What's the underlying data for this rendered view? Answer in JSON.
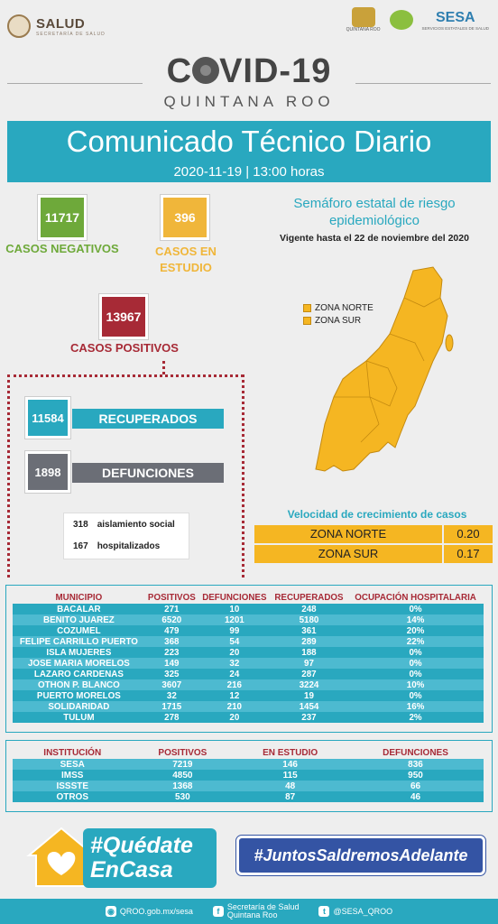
{
  "header": {
    "salud_name": "SALUD",
    "salud_sub": "SECRETARÍA DE SALUD",
    "qroo_logo_text": "QUINTANA ROO",
    "sesa_name": "SESA",
    "sesa_sub": "SERVICIOS ESTATALES DE SALUD"
  },
  "title": {
    "covid_left": "C",
    "covid_right": "VID-19",
    "region": "QUINTANA ROO",
    "banner": "Comunicado Técnico Diario",
    "date": "2020-11-19 | 13:00 horas"
  },
  "stats": {
    "negativos": {
      "value": "11717",
      "label": "CASOS NEGATIVOS",
      "color": "#6ea93a"
    },
    "estudio": {
      "value": "396",
      "label_1": "CASOS EN",
      "label_2": "ESTUDIO",
      "color": "#f0b63a"
    },
    "positivos": {
      "value": "13967",
      "label": "CASOS POSITIVOS",
      "color": "#a72a36"
    },
    "recuperados": {
      "value": "11584",
      "label": "RECUPERADOS"
    },
    "defunciones": {
      "value": "1898",
      "label": "DEFUNCIONES"
    },
    "aislamiento": {
      "value": "318",
      "label": "aislamiento social"
    },
    "hospitalizados": {
      "value": "167",
      "label": "hospitalizados"
    }
  },
  "semaforo": {
    "title_1": "Semáforo estatal de riesgo",
    "title_2": "epidemiológico",
    "vigente": "Vigente hasta el 22 de noviembre del 2020",
    "legend": [
      "ZONA NORTE",
      "ZONA SUR"
    ],
    "color": "#f5b622"
  },
  "velocidad": {
    "title": "Velocidad de crecimiento de casos",
    "rows": [
      {
        "zone": "ZONA NORTE",
        "value": "0.20"
      },
      {
        "zone": "ZONA SUR",
        "value": "0.17"
      }
    ]
  },
  "municipios": {
    "headers": [
      "MUNICIPIO",
      "POSITIVOS",
      "DEFUNCIONES",
      "RECUPERADOS",
      "OCUPACIÓN HOSPITALARIA"
    ],
    "rows": [
      [
        "BACALAR",
        "271",
        "10",
        "248",
        "0%"
      ],
      [
        "BENITO JUAREZ",
        "6520",
        "1201",
        "5180",
        "14%"
      ],
      [
        "COZUMEL",
        "479",
        "99",
        "361",
        "20%"
      ],
      [
        "FELIPE CARRILLO PUERTO",
        "368",
        "54",
        "289",
        "22%"
      ],
      [
        "ISLA MUJERES",
        "223",
        "20",
        "188",
        "0%"
      ],
      [
        "JOSE MARIA MORELOS",
        "149",
        "32",
        "97",
        "0%"
      ],
      [
        "LAZARO CARDENAS",
        "325",
        "24",
        "287",
        "0%"
      ],
      [
        "OTHON P. BLANCO",
        "3607",
        "216",
        "3224",
        "10%"
      ],
      [
        "PUERTO MORELOS",
        "32",
        "12",
        "19",
        "0%"
      ],
      [
        "SOLIDARIDAD",
        "1715",
        "210",
        "1454",
        "16%"
      ],
      [
        "TULUM",
        "278",
        "20",
        "237",
        "2%"
      ]
    ]
  },
  "instituciones": {
    "headers": [
      "INSTITUCIÓN",
      "POSITIVOS",
      "EN ESTUDIO",
      "DEFUNCIONES"
    ],
    "rows": [
      [
        "SESA",
        "7219",
        "146",
        "836"
      ],
      [
        "IMSS",
        "4850",
        "115",
        "950"
      ],
      [
        "ISSSTE",
        "1368",
        "48",
        "66"
      ],
      [
        "OTROS",
        "530",
        "87",
        "46"
      ]
    ]
  },
  "bottom": {
    "quedate_1": "#Quédate",
    "quedate_2": "EnCasa",
    "juntos": "#JuntosSaldremosAdelante"
  },
  "footer": {
    "web": "QROO.gob.mx/sesa",
    "fb_1": "Secretaría de Salud",
    "fb_2": "Quintana Roo",
    "tw": "@SESA_QROO"
  }
}
